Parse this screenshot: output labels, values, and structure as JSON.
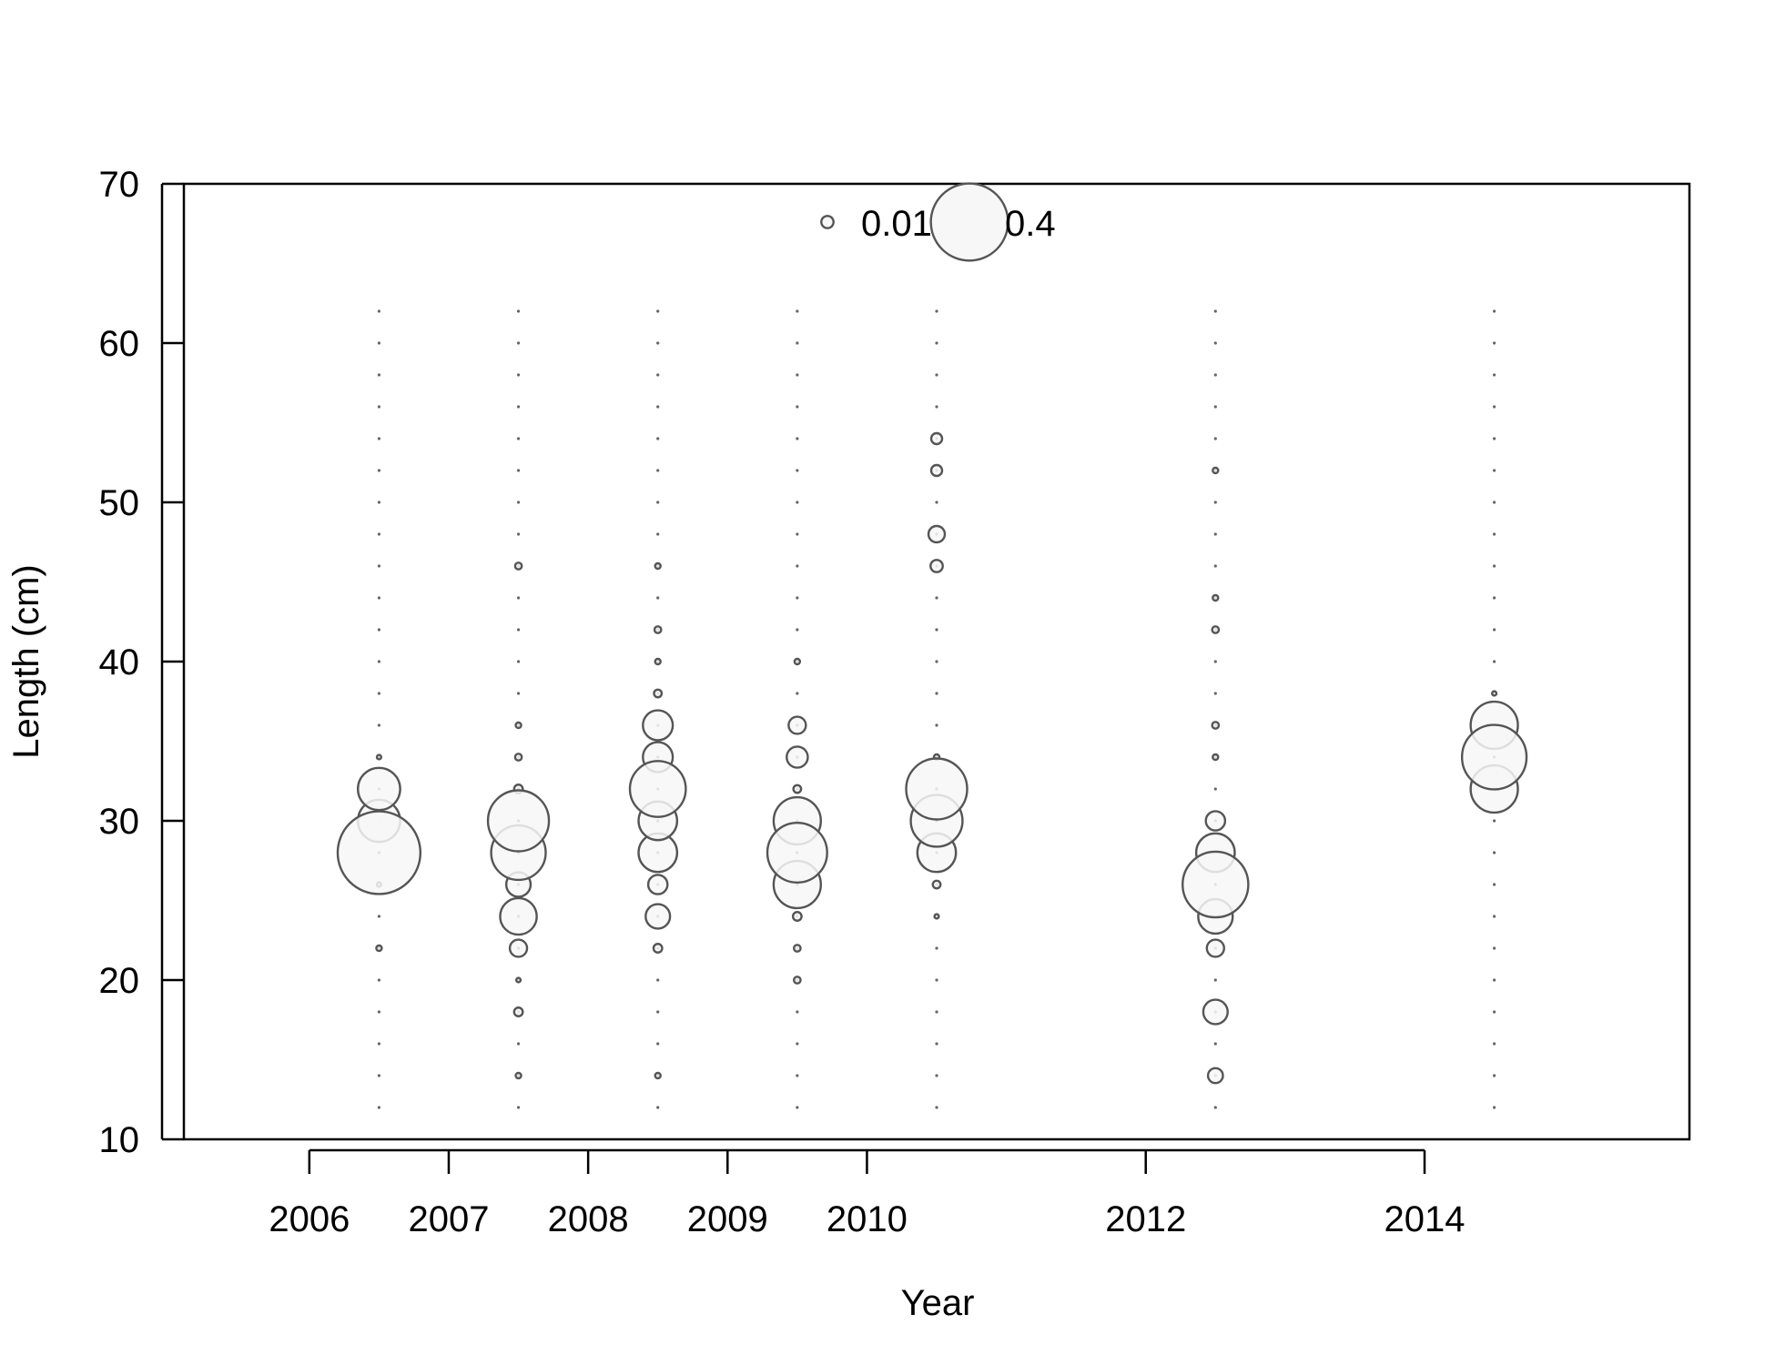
{
  "chart_data": {
    "type": "scatter",
    "subtype": "bubble",
    "xlabel": "Year",
    "ylabel": "Length (cm)",
    "xlim": [
      2005.1,
      2015.9
    ],
    "ylim": [
      10,
      70
    ],
    "x_ticks": [
      2006,
      2007,
      2008,
      2009,
      2010,
      2012,
      2014
    ],
    "y_ticks": [
      10,
      20,
      30,
      40,
      50,
      60,
      70
    ],
    "grid": false,
    "bubble_fill": "#f7f7f7",
    "bubble_stroke": "#555555",
    "legend": {
      "position": "top-center",
      "entries": [
        {
          "label": "0.01",
          "value": 0.01
        },
        {
          "label": "0.4",
          "value": 0.4
        }
      ]
    },
    "length_bins": [
      12,
      14,
      16,
      18,
      20,
      22,
      24,
      26,
      28,
      30,
      32,
      34,
      36,
      38,
      40,
      42,
      44,
      46,
      48,
      50,
      52,
      54,
      56,
      58,
      60,
      62
    ],
    "series": [
      {
        "x": 2006.5,
        "points": [
          [
            22,
            0.002
          ],
          [
            26,
            0.001
          ],
          [
            28,
            0.46
          ],
          [
            30,
            0.12
          ],
          [
            32,
            0.12
          ],
          [
            34,
            0.001
          ]
        ]
      },
      {
        "x": 2007.5,
        "points": [
          [
            14,
            0.002
          ],
          [
            18,
            0.005
          ],
          [
            20,
            0.001
          ],
          [
            22,
            0.02
          ],
          [
            24,
            0.09
          ],
          [
            26,
            0.04
          ],
          [
            28,
            0.2
          ],
          [
            30,
            0.25
          ],
          [
            32,
            0.005
          ],
          [
            34,
            0.003
          ],
          [
            36,
            0.002
          ],
          [
            46,
            0.003
          ]
        ]
      },
      {
        "x": 2008.5,
        "points": [
          [
            14,
            0.002
          ],
          [
            22,
            0.005
          ],
          [
            24,
            0.04
          ],
          [
            26,
            0.025
          ],
          [
            28,
            0.1
          ],
          [
            30,
            0.1
          ],
          [
            32,
            0.21
          ],
          [
            34,
            0.06
          ],
          [
            36,
            0.06
          ],
          [
            38,
            0.004
          ],
          [
            40,
            0.002
          ],
          [
            42,
            0.003
          ],
          [
            46,
            0.002
          ]
        ]
      },
      {
        "x": 2009.5,
        "points": [
          [
            20,
            0.003
          ],
          [
            22,
            0.003
          ],
          [
            24,
            0.005
          ],
          [
            26,
            0.15
          ],
          [
            28,
            0.24
          ],
          [
            30,
            0.15
          ],
          [
            32,
            0.004
          ],
          [
            34,
            0.03
          ],
          [
            36,
            0.02
          ],
          [
            40,
            0.002
          ]
        ]
      },
      {
        "x": 2010.5,
        "points": [
          [
            24,
            0.001
          ],
          [
            26,
            0.004
          ],
          [
            28,
            0.1
          ],
          [
            30,
            0.18
          ],
          [
            32,
            0.25
          ],
          [
            34,
            0.002
          ],
          [
            46,
            0.01
          ],
          [
            48,
            0.018
          ],
          [
            52,
            0.008
          ],
          [
            54,
            0.008
          ]
        ]
      },
      {
        "x": 2012.5,
        "points": [
          [
            14,
            0.015
          ],
          [
            18,
            0.04
          ],
          [
            22,
            0.02
          ],
          [
            24,
            0.08
          ],
          [
            26,
            0.29
          ],
          [
            28,
            0.1
          ],
          [
            30,
            0.025
          ],
          [
            34,
            0.002
          ],
          [
            36,
            0.003
          ],
          [
            42,
            0.003
          ],
          [
            44,
            0.002
          ],
          [
            52,
            0.002
          ]
        ]
      },
      {
        "x": 2014.5,
        "points": [
          [
            32,
            0.15
          ],
          [
            34,
            0.28
          ],
          [
            36,
            0.15
          ],
          [
            38,
            0.001
          ]
        ]
      }
    ]
  }
}
